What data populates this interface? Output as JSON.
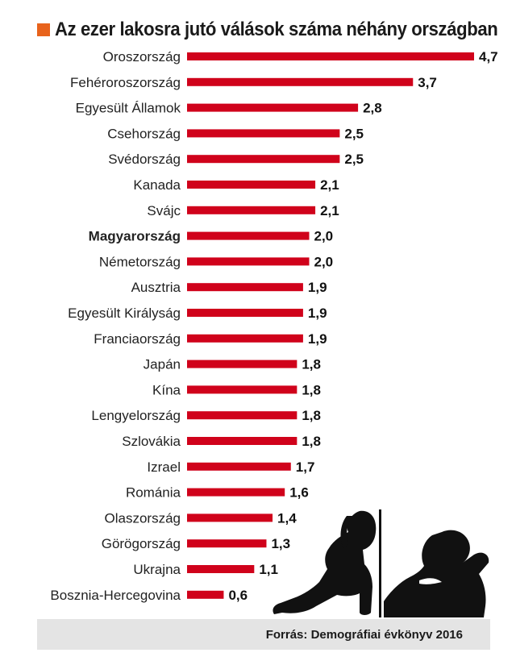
{
  "chart_data": {
    "type": "bar",
    "orientation": "horizontal",
    "title": "Az ezer lakosra jutó válások száma néhány országban",
    "categories": [
      "Oroszország",
      "Fehéroroszország",
      "Egyesült Államok",
      "Csehország",
      "Svédország",
      "Kanada",
      "Svájc",
      "Magyarország",
      "Németország",
      "Ausztria",
      "Egyesült Királyság",
      "Franciaország",
      "Japán",
      "Kína",
      "Lengyelország",
      "Szlovákia",
      "Izrael",
      "Románia",
      "Olaszország",
      "Görögország",
      "Ukrajna",
      "Bosznia-Hercegovina"
    ],
    "values": [
      4.7,
      3.7,
      2.8,
      2.5,
      2.5,
      2.1,
      2.1,
      2.0,
      2.0,
      1.9,
      1.9,
      1.9,
      1.8,
      1.8,
      1.8,
      1.8,
      1.7,
      1.6,
      1.4,
      1.3,
      1.1,
      0.6
    ],
    "value_labels": [
      "4,7",
      "3,7",
      "2,8",
      "2,5",
      "2,5",
      "2,1",
      "2,1",
      "2,0",
      "2,0",
      "1,9",
      "1,9",
      "1,9",
      "1,8",
      "1,8",
      "1,8",
      "1,8",
      "1,7",
      "1,6",
      "1,4",
      "1,3",
      "1,1",
      "0,6"
    ],
    "highlighted_category": "Magyarország",
    "bar_color": "#d0021b",
    "accent_color": "#e8631c",
    "xlim": [
      0,
      4.7
    ],
    "grid": false,
    "axes_visible": false
  },
  "footer": {
    "source_text": "Forrás: Demográfiai évkönyv 2016"
  },
  "illustration": {
    "description_icon": "sad-couple-silhouette-icon"
  }
}
